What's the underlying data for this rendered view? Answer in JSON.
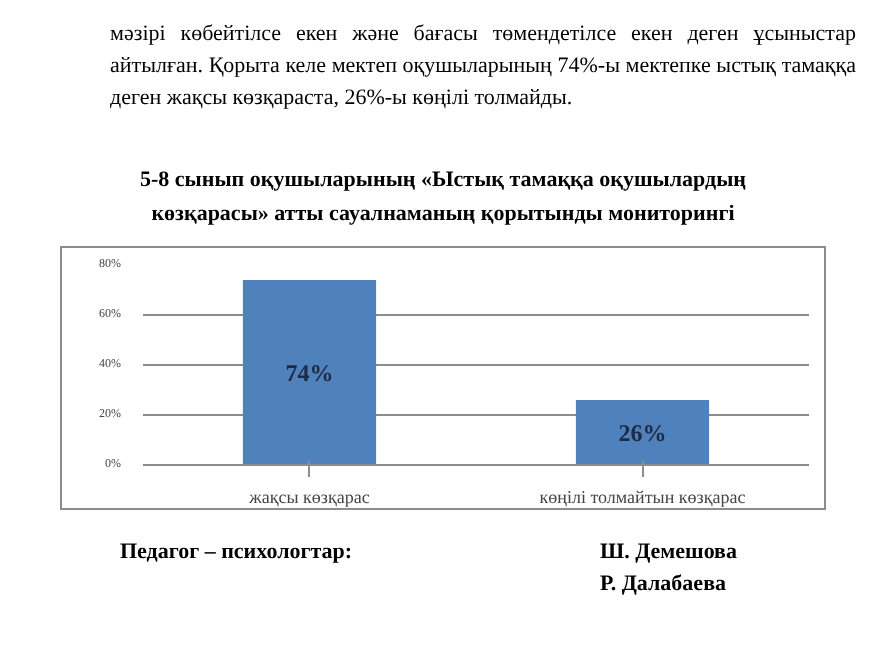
{
  "chart_data": {
    "type": "bar",
    "title": "5-8 сынып оқушыларының «Ыстық тамаққа оқушылардың көзқарасы» атты сауалнаманың қорытынды мониторингі",
    "annotations": [
      "мәзірі көбейтілсе екен және бағасы төмендетілсе екен деген ұсыныстар айтылған. Қорыта келе мектеп оқушыларының 74%-ы мектепке ыстық тамаққа деген жақсы көзқараста, 26%-ы көңілі толмайды.",
      "Педагог – психологтар:",
      "Ш. Демешова",
      "Р. Далабаева"
    ],
    "categories": [
      "жақсы көзқарас",
      "көңілі толмайтын көзқарас"
    ],
    "values": [
      74,
      26
    ],
    "color": "#4f81bd",
    "value_labels": [
      "74%",
      "26%"
    ],
    "ylim": [
      0,
      80
    ],
    "yticks": [
      {
        "value": 0,
        "label": "0%"
      },
      {
        "value": 20,
        "label": "20%"
      },
      {
        "value": 40,
        "label": "40%"
      },
      {
        "value": 60,
        "label": "60%"
      },
      {
        "value": 80,
        "label": "80%"
      }
    ],
    "grid": "y"
  }
}
